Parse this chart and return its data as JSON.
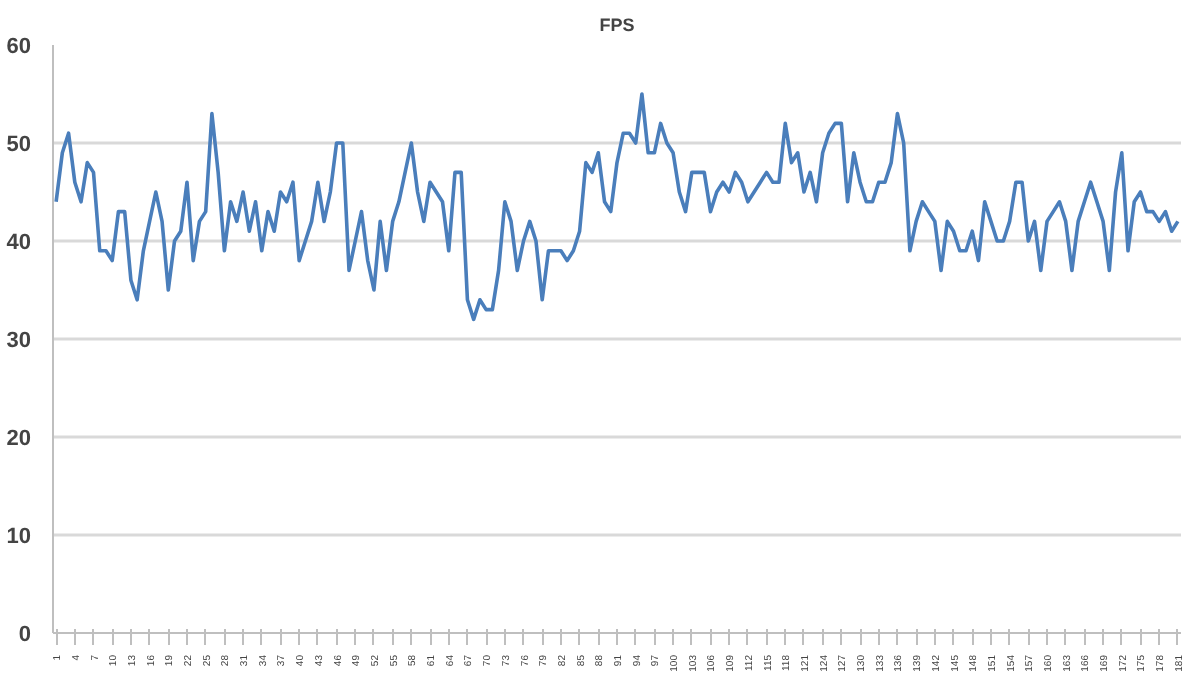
{
  "chart_data": {
    "type": "line",
    "title": "FPS",
    "categories": [
      "1",
      null,
      null,
      "4",
      null,
      null,
      "7",
      null,
      null,
      "10",
      null,
      null,
      "13",
      null,
      null,
      "16",
      null,
      null,
      "19",
      null,
      null,
      "22",
      null,
      null,
      "25",
      null,
      null,
      "28",
      null,
      null,
      "31",
      null,
      null,
      "34",
      null,
      null,
      "37",
      null,
      null,
      "40",
      null,
      null,
      "43",
      null,
      null,
      "46",
      null,
      null,
      "49",
      null,
      null,
      "52",
      null,
      null,
      "55",
      null,
      null,
      "58",
      null,
      null,
      "61",
      null,
      null,
      "64",
      null,
      null,
      "67",
      null,
      null,
      "70",
      null,
      null,
      "73",
      null,
      null,
      "76",
      null,
      null,
      "79",
      null,
      null,
      "82",
      null,
      null,
      "85",
      null,
      null,
      "88",
      null,
      null,
      "91",
      null,
      null,
      "94",
      null,
      null,
      "97",
      null,
      null,
      "100",
      null,
      null,
      "103",
      null,
      null,
      "106",
      null,
      null,
      "109",
      null,
      null,
      "112",
      null,
      null,
      "115",
      null,
      null,
      "118",
      null,
      null,
      "121",
      null,
      null,
      "124",
      null,
      null,
      "127",
      null,
      null,
      "130",
      null,
      null,
      "133",
      null,
      null,
      "136",
      null,
      null,
      "139",
      null,
      null,
      "142",
      null,
      null,
      "145",
      null,
      null,
      "148",
      null,
      null,
      "151",
      null,
      null,
      "154",
      null,
      null,
      "157",
      null,
      null,
      "160",
      null,
      null,
      "163",
      null,
      null,
      "166",
      null,
      null,
      "169",
      null,
      null,
      "172",
      null,
      null,
      "175",
      null,
      null,
      "178",
      null,
      null,
      "181"
    ],
    "series": [
      {
        "color": "#4a7ebb",
        "values": [
          44,
          49,
          51,
          46,
          44,
          48,
          47,
          39,
          39,
          38,
          43,
          43,
          36,
          34,
          39,
          42,
          45,
          42,
          35,
          40,
          41,
          46,
          38,
          42,
          43,
          53,
          47,
          39,
          44,
          42,
          45,
          41,
          44,
          39,
          43,
          41,
          45,
          44,
          46,
          38,
          40,
          42,
          46,
          42,
          45,
          50,
          50,
          37,
          40,
          43,
          38,
          35,
          42,
          37,
          42,
          44,
          47,
          50,
          45,
          42,
          46,
          45,
          44,
          39,
          47,
          47,
          34,
          32,
          34,
          33,
          33,
          37,
          44,
          42,
          37,
          40,
          42,
          40,
          34,
          39,
          39,
          39,
          38,
          39,
          41,
          48,
          47,
          49,
          44,
          43,
          48,
          51,
          51,
          50,
          55,
          49,
          49,
          52,
          50,
          49,
          45,
          43,
          47,
          47,
          47,
          43,
          45,
          46,
          45,
          47,
          46,
          44,
          45,
          46,
          47,
          46,
          46,
          52,
          48,
          49,
          45,
          47,
          44,
          49,
          51,
          52,
          52,
          44,
          49,
          46,
          44,
          44,
          46,
          46,
          48,
          53,
          50,
          39,
          42,
          44,
          43,
          42,
          37,
          42,
          41,
          39,
          39,
          41,
          38,
          44,
          42,
          40,
          40,
          42,
          46,
          46,
          40,
          42,
          37,
          42,
          43,
          44,
          42,
          37,
          42,
          44,
          46,
          44,
          42,
          37,
          45,
          49,
          39,
          44,
          45,
          43,
          43,
          42,
          43,
          41,
          42
        ]
      }
    ],
    "ylim": [
      0,
      60
    ],
    "yticks": [
      0,
      10,
      20,
      30,
      40,
      50,
      60
    ],
    "grid": "y",
    "marker": "none",
    "line_style": "solid"
  }
}
